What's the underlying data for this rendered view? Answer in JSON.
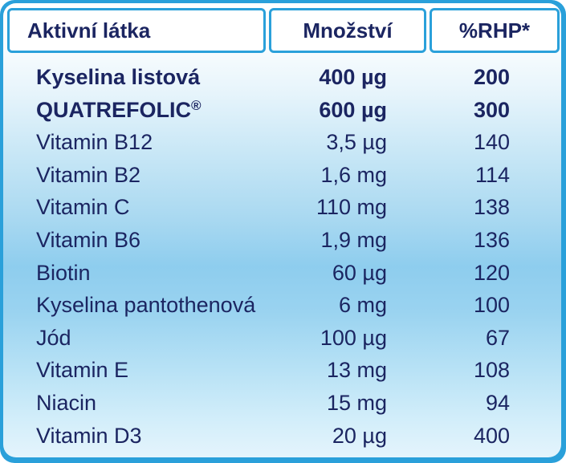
{
  "table": {
    "headers": {
      "substance": "Aktivní látka",
      "amount": "Množství",
      "rhp": "%RHP*"
    },
    "rows": [
      {
        "name": "Kyselina listová",
        "amount": "400 µg",
        "rhp": "200",
        "bold": true
      },
      {
        "name": "QUATREFOLIC",
        "name_suffix": "®",
        "amount": "600 µg",
        "rhp": "300",
        "bold": true
      },
      {
        "name": "Vitamin B12",
        "amount": "3,5 µg",
        "rhp": "140",
        "bold": false
      },
      {
        "name": "Vitamin B2",
        "amount": "1,6 mg",
        "rhp": "114",
        "bold": false
      },
      {
        "name": "Vitamin C",
        "amount": "110 mg",
        "rhp": "138",
        "bold": false
      },
      {
        "name": "Vitamin B6",
        "amount": "1,9 mg",
        "rhp": "136",
        "bold": false
      },
      {
        "name": "Biotin",
        "amount": "60 µg",
        "rhp": "120",
        "bold": false
      },
      {
        "name": "Kyselina pantothenová",
        "amount": "6 mg",
        "rhp": "100",
        "bold": false
      },
      {
        "name": "Jód",
        "amount": "100 µg",
        "rhp": "67",
        "bold": false
      },
      {
        "name": "Vitamin E",
        "amount": "13 mg",
        "rhp": "108",
        "bold": false
      },
      {
        "name": "Niacin",
        "amount": "15 mg",
        "rhp": "94",
        "bold": false
      },
      {
        "name": "Vitamin D3",
        "amount": "20 µg",
        "rhp": "400",
        "bold": false
      }
    ]
  },
  "colors": {
    "text": "#1b2561",
    "border": "#2aa0da"
  }
}
